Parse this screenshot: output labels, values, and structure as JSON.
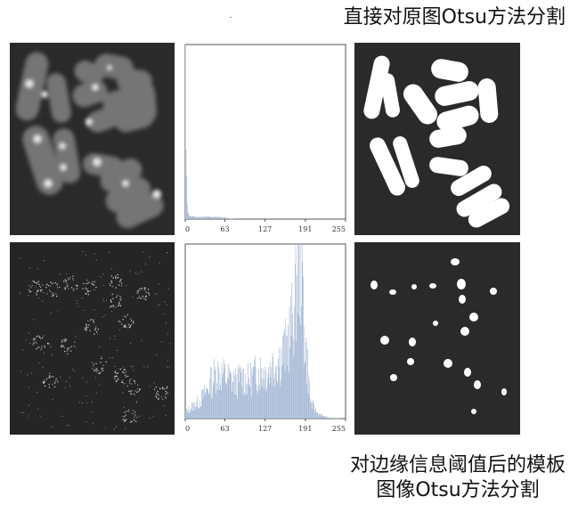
{
  "captions": {
    "top": "直接对原图Otsu方法分割",
    "bottom_line1": "对边缘信息阈值后的模板",
    "bottom_line2": "图像Otsu方法分割"
  },
  "histograms": {
    "tick_labels": [
      "0",
      "63",
      "127",
      "191",
      "255"
    ],
    "bar_color": "#9fb3d2"
  },
  "chart_data": [
    {
      "type": "bar",
      "title": "",
      "xlabel": "",
      "ylabel": "",
      "xlim": [
        0,
        255
      ],
      "ticks": [
        0,
        63,
        127,
        191,
        255
      ],
      "grid": false,
      "description_key": "histogram of original image",
      "series": [
        {
          "x": [
            0,
            1,
            2,
            3,
            4,
            5,
            6,
            7,
            8,
            9,
            10,
            12,
            15,
            20,
            25,
            30,
            35,
            40,
            45,
            50,
            55,
            60,
            63,
            70,
            80,
            90,
            100,
            127,
            191,
            255
          ],
          "values": [
            240,
            95,
            60,
            20,
            10,
            7,
            6,
            5,
            5,
            4,
            4,
            4,
            3,
            3,
            3,
            3,
            4,
            3,
            3,
            3,
            3,
            2,
            2,
            1,
            0,
            0,
            0,
            0,
            0,
            0
          ]
        }
      ]
    },
    {
      "type": "bar",
      "title": "",
      "xlabel": "",
      "ylabel": "",
      "xlim": [
        0,
        255
      ],
      "ticks": [
        0,
        63,
        127,
        191,
        255
      ],
      "grid": false,
      "series": [
        {
          "x": [
            0,
            10,
            20,
            30,
            40,
            50,
            60,
            70,
            80,
            90,
            100,
            110,
            120,
            130,
            140,
            150,
            160,
            170,
            175,
            180,
            185,
            190,
            200,
            210,
            220,
            230,
            255
          ],
          "values": [
            8,
            15,
            20,
            30,
            45,
            60,
            55,
            50,
            45,
            52,
            48,
            55,
            62,
            58,
            70,
            75,
            88,
            120,
            150,
            190,
            210,
            110,
            20,
            8,
            3,
            1,
            0
          ]
        }
      ]
    }
  ]
}
